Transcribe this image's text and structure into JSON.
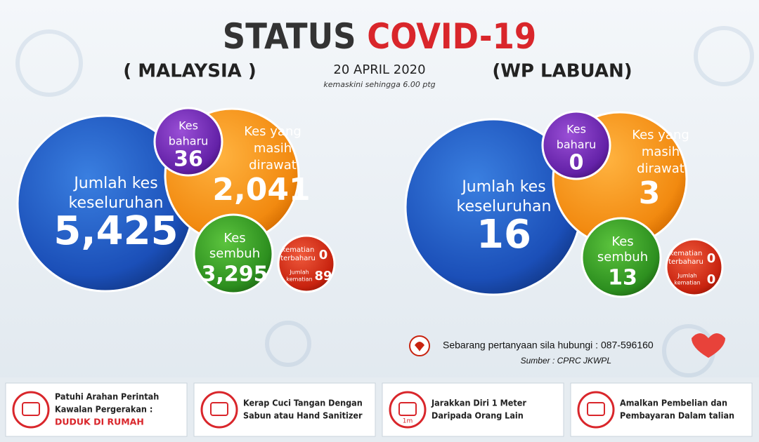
{
  "title": {
    "part1": "STATUS",
    "part2": "COVID-19"
  },
  "date": "20 APRIL 2020",
  "updated": "kemaskini sehingga 6.00 ptg",
  "panels": [
    {
      "region": "( MALAYSIA )",
      "total": {
        "label": [
          "Jumlah kes",
          "keseluruhan"
        ],
        "value": "5,425"
      },
      "new": {
        "label": [
          "Kes",
          "baharu"
        ],
        "value": "36"
      },
      "active": {
        "label": [
          "Kes yang",
          "masih",
          "dirawat"
        ],
        "value": "2,041"
      },
      "recovered": {
        "label": [
          "Kes",
          "sembuh"
        ],
        "value": "3,295"
      },
      "new_deaths": {
        "label": [
          "kematian",
          "terbaharu"
        ],
        "value": "0"
      },
      "total_deaths": {
        "label": [
          "Jumlah",
          "kematian"
        ],
        "value": "89"
      }
    },
    {
      "region": "(WP LABUAN)",
      "total": {
        "label": [
          "Jumlah kes",
          "keseluruhan"
        ],
        "value": "16"
      },
      "new": {
        "label": [
          "Kes",
          "baharu"
        ],
        "value": "0"
      },
      "active": {
        "label": [
          "Kes yang",
          "masih",
          "dirawat"
        ],
        "value": "3"
      },
      "recovered": {
        "label": [
          "Kes",
          "sembuh"
        ],
        "value": "13"
      },
      "new_deaths": {
        "label": [
          "kematian",
          "terbaharu"
        ],
        "value": "0"
      },
      "total_deaths": {
        "label": [
          "Jumlah",
          "kematian"
        ],
        "value": "0"
      }
    }
  ],
  "contact": "Sebarang pertanyaan sila hubungi : 087-596160",
  "source": "Sumber : CPRC JKWPL",
  "tips": [
    {
      "lines": [
        "Patuhi Arahan Perintah",
        "Kawalan Pergerakan :"
      ],
      "highlight": "DUDUK DI RUMAH"
    },
    {
      "lines": [
        "Kerap Cuci Tangan Dengan",
        "Sabun atau Hand Sanitizer"
      ]
    },
    {
      "lines": [
        "Jarakkan Diri 1 Meter",
        "Daripada Orang Lain"
      ],
      "icon": "1m"
    },
    {
      "lines": [
        "Amalkan Pembelian dan",
        "Pembayaran Dalam talian"
      ]
    }
  ]
}
